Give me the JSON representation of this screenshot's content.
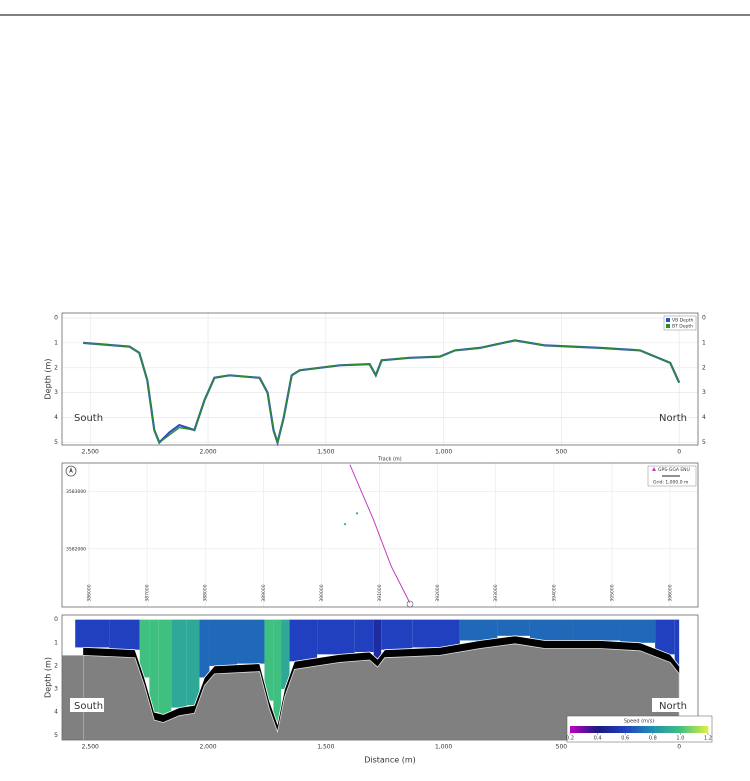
{
  "chart_data": [
    {
      "type": "line",
      "y_label": "Depth (m)",
      "x_label": "Track (m)",
      "x": [
        2530,
        2334,
        2292,
        2258,
        2228,
        2207,
        2164,
        2122,
        2058,
        2015,
        1973,
        1909,
        1781,
        1747,
        1722,
        1705,
        1679,
        1645,
        1611,
        1441,
        1314,
        1288,
        1263,
        1144,
        1016,
        952,
        846,
        697,
        570,
        336,
        166,
        38,
        0
      ],
      "series": [
        {
          "name": "VB Depth",
          "color": "#3050c0",
          "values": [
            1.0,
            1.15,
            1.4,
            2.5,
            4.5,
            5.0,
            4.6,
            4.3,
            4.5,
            3.3,
            2.4,
            2.3,
            2.4,
            3.0,
            4.5,
            5.0,
            4.0,
            2.3,
            2.1,
            1.9,
            1.85,
            2.3,
            1.7,
            1.6,
            1.55,
            1.3,
            1.2,
            0.9,
            1.1,
            1.2,
            1.3,
            1.8,
            2.6
          ]
        },
        {
          "name": "BT Depth",
          "color": "#2e8b2e",
          "values": [
            1.0,
            1.15,
            1.4,
            2.5,
            4.5,
            5.0,
            4.7,
            4.4,
            4.5,
            3.3,
            2.4,
            2.3,
            2.4,
            3.0,
            4.5,
            5.0,
            4.0,
            2.3,
            2.1,
            1.9,
            1.85,
            2.3,
            1.7,
            1.6,
            1.55,
            1.3,
            1.2,
            0.9,
            1.1,
            1.2,
            1.3,
            1.8,
            2.6
          ]
        }
      ],
      "xlim": [
        2620,
        -80
      ],
      "ylim": [
        -0.2,
        5.1
      ],
      "xticks": [
        {
          "value": 2500,
          "label": "2,500"
        },
        {
          "value": 2000,
          "label": "2,000"
        },
        {
          "value": 1500,
          "label": "1,500"
        },
        {
          "value": 1000,
          "label": "1,000"
        },
        500,
        0
      ],
      "yticks": [
        0,
        1,
        2,
        3,
        4,
        5
      ],
      "grid": true,
      "annotations": [
        "South",
        "North"
      ]
    },
    {
      "type": "map",
      "series": [
        {
          "name": "GPS-GGA ENU",
          "color": "#c040c0",
          "x": [
            390490,
            390900,
            391200,
            391520
          ],
          "values": [
            3583470,
            3582500,
            3581700,
            3581060
          ]
        }
      ],
      "points": {
        "color": "#50b0a0",
        "x": [
          390406,
          390613
        ],
        "values": [
          3582431,
          3582621
        ]
      },
      "note": "Grid: 1,000.0 m",
      "xlim": [
        385535,
        396482
      ],
      "ylim": [
        3580983,
        3583500
      ],
      "xticks": [
        386000,
        387000,
        388000,
        389000,
        390000,
        391000,
        392000,
        393000,
        394000,
        395000,
        396000
      ],
      "yticks": [
        3582000,
        3583000
      ],
      "grid": true
    },
    {
      "type": "profile",
      "y_label": "Depth (m)",
      "x_label": "Distance (m)",
      "x": [
        2530,
        2310,
        2270,
        2228,
        2190,
        2122,
        2058,
        2015,
        1973,
        1781,
        1740,
        1705,
        1675,
        1633,
        1441,
        1314,
        1280,
        1250,
        1016,
        846,
        697,
        570,
        336,
        166,
        38,
        0
      ],
      "bottom_depth": [
        1.2,
        1.3,
        2.5,
        4.0,
        4.1,
        3.8,
        3.7,
        2.5,
        2.0,
        1.9,
        3.5,
        4.5,
        3.0,
        1.8,
        1.5,
        1.4,
        1.7,
        1.3,
        1.2,
        0.9,
        0.7,
        0.9,
        0.9,
        1.0,
        1.5,
        2.0
      ],
      "speed": [
        0.6,
        0.6,
        1.0,
        1.0,
        1.0,
        0.9,
        0.9,
        0.7,
        0.7,
        0.7,
        1.0,
        1.0,
        0.9,
        0.6,
        0.6,
        0.6,
        0.5,
        0.6,
        0.6,
        0.7,
        0.7,
        0.7,
        0.7,
        0.7,
        0.6,
        0.6
      ],
      "xlim": [
        2620,
        -80
      ],
      "ylim": [
        -0.2,
        5.2
      ],
      "xticks": [
        {
          "value": 2500,
          "label": "2,500"
        },
        {
          "value": 2000,
          "label": "2,000"
        },
        {
          "value": 1500,
          "label": "1,500"
        },
        {
          "value": 1000,
          "label": "1,000"
        },
        500,
        0
      ],
      "yticks": [
        0,
        1,
        2,
        3,
        4,
        5
      ],
      "colorbar": {
        "title": "Speed (m/s)",
        "clim": [
          0.2,
          1.2
        ],
        "colors": [
          "#c000c0",
          "#1a1a80",
          "#2040c0",
          "#2090b0",
          "#40c080",
          "#e0f040"
        ],
        "ticks": [
          0.2,
          0.4,
          0.6,
          0.8,
          {
            "value": 1,
            "label": "1.0"
          },
          1.2
        ]
      },
      "annotations": [
        "South",
        "North"
      ]
    }
  ]
}
